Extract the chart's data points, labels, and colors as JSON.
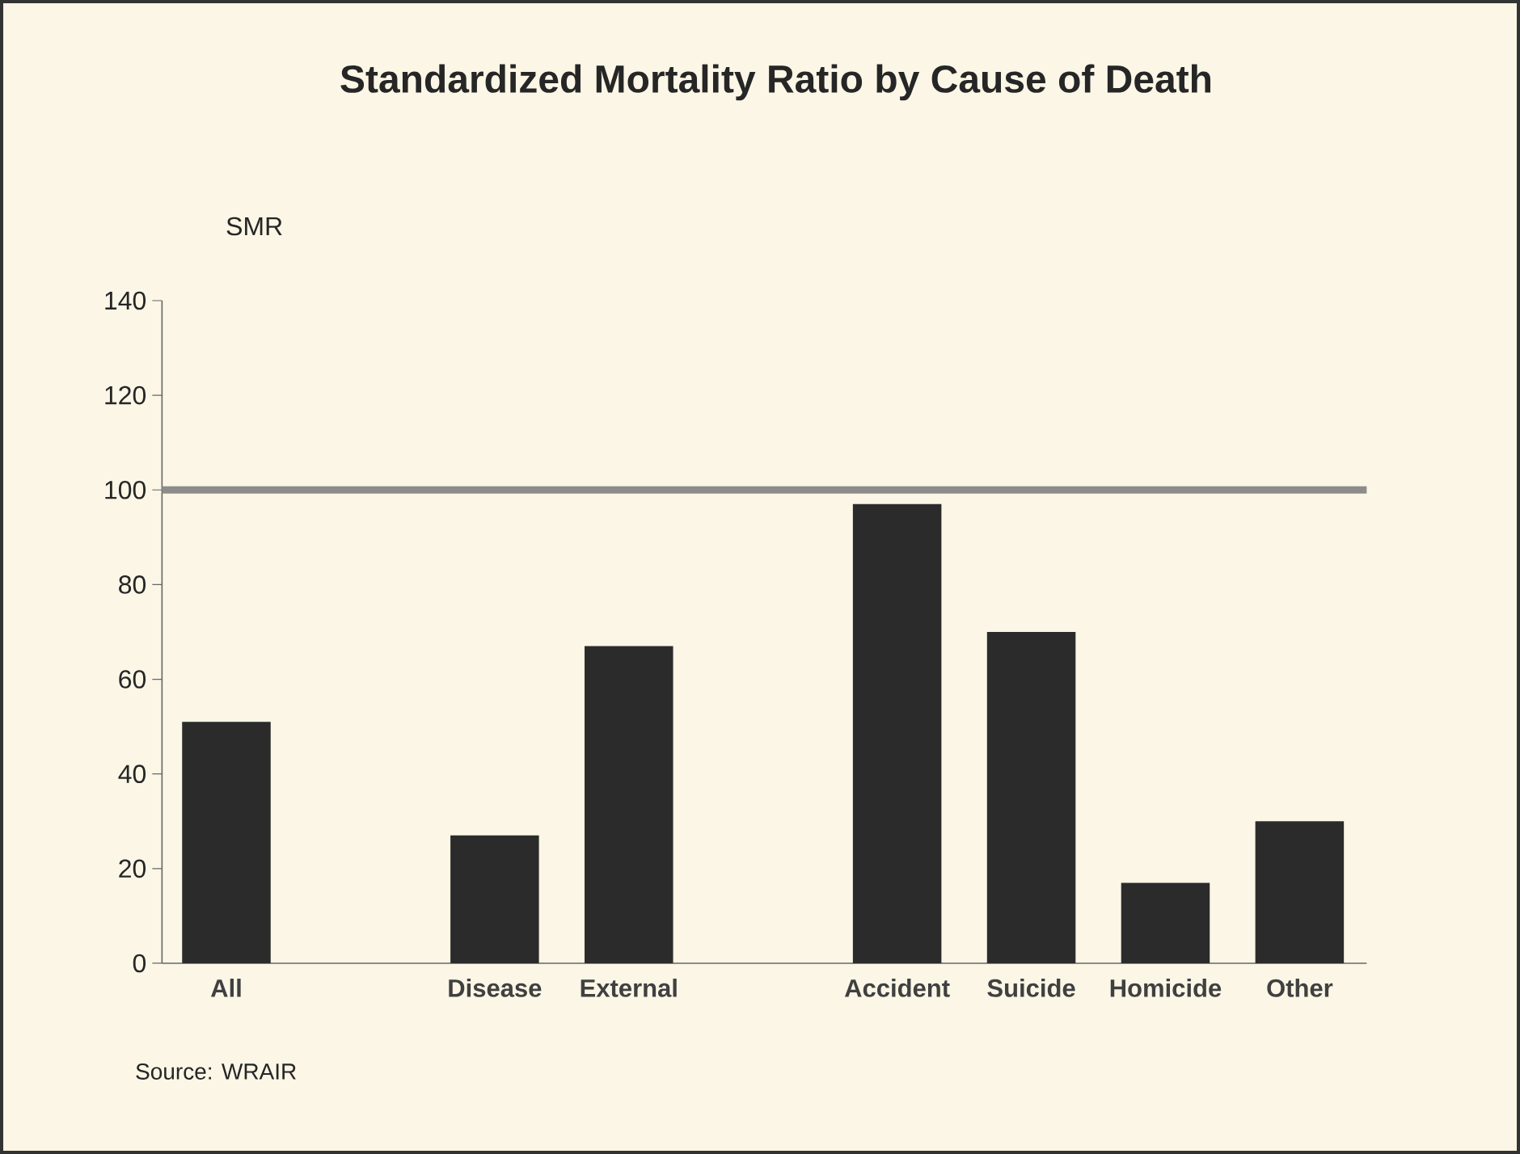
{
  "chart_data": {
    "type": "bar",
    "title": "Standardized Mortality Ratio by Cause of Death",
    "ylabel": "SMR",
    "categories": [
      "All",
      null,
      "Disease",
      "External",
      null,
      "Accident",
      "Suicide",
      "Homicide",
      "Other"
    ],
    "values": [
      51,
      null,
      27,
      67,
      null,
      97,
      70,
      17,
      30
    ],
    "color": "#2b2b2b",
    "ylim": [
      0,
      140
    ],
    "yticks": [
      0,
      20,
      40,
      60,
      80,
      100,
      120,
      140
    ],
    "ref_lines": [
      {
        "axis": "y",
        "value": 100,
        "color": "#8c8c8a"
      }
    ],
    "annotations": [
      "Source: WRAIR"
    ],
    "grid": false
  }
}
